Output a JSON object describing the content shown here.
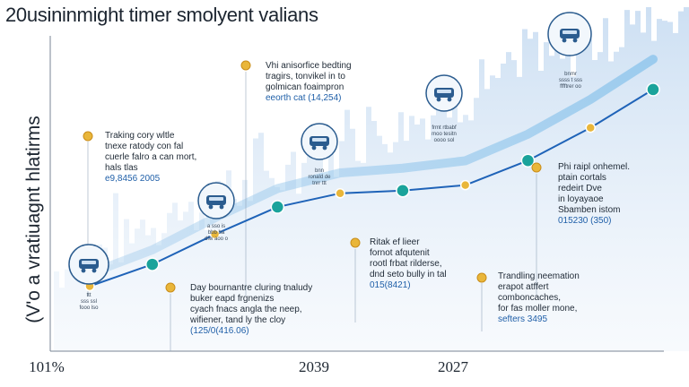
{
  "title": "20usininmight timer smolyent valians",
  "chart_data": {
    "type": "line",
    "title": "20usininmight timer smolyent valians",
    "ylabel": "(V'o a vratiuagnt hlatirms",
    "xlabel": "",
    "x_tick_labels": [
      "101%",
      "2039",
      "2027"
    ],
    "series": [
      {
        "values": [
          {
            "x": 0,
            "y": 10
          },
          {
            "x": 1,
            "y": 18
          },
          {
            "x": 2,
            "y": 29
          },
          {
            "x": 3,
            "y": 39
          },
          {
            "x": 4,
            "y": 44
          },
          {
            "x": 5,
            "y": 45
          },
          {
            "x": 6,
            "y": 47
          },
          {
            "x": 7,
            "y": 56
          },
          {
            "x": 8,
            "y": 68
          },
          {
            "x": 9,
            "y": 82
          }
        ]
      }
    ],
    "ylim": [
      0,
      100
    ],
    "grid": false,
    "legend": "none"
  },
  "annotations": [
    {
      "lines": [
        "Vhi anisorfice bedting",
        "tragirs, tonvikel in to",
        "golmican foaimpron"
      ],
      "highlight": "eeorth cat (14,254)"
    },
    {
      "lines": [
        "Traking cory wltle",
        "tnexe ratody con fal",
        "cuerle falro a can mort,",
        "hals tlas"
      ],
      "highlight": "e9,8456 2005"
    },
    {
      "lines": [
        "Day bournantre cluring tnaludy",
        "buker eapd frgnenizs",
        "cyach fnacs angla the neep,",
        "wifiener, tand ly the cloy"
      ],
      "highlight": "(125/0(416.06)"
    },
    {
      "lines": [
        "Ritak ef lieer",
        "fornot afqutenit",
        "rootl frbat rilderse,",
        "dnd seto bully in tal"
      ],
      "highlight": "015(8421)"
    },
    {
      "lines": [
        "Phi raipl onhemel.",
        "ptain cortals",
        "redeirt Dve",
        "in loyayaoe",
        "Sbamben istom"
      ],
      "highlight": "015230 (350)"
    },
    {
      "lines": [
        "Trandling neemation",
        "erapot atffert",
        "comboncaches,",
        "for fas moller mone,"
      ],
      "highlight": "sefters 3495"
    }
  ],
  "colors": {
    "line": "#1f63b8",
    "marker_teal": "#1aa39b",
    "marker_gold": "#e9b63a",
    "area_light": "#cfe1f3",
    "area_mid": "#a9c9e8",
    "title": "#1c2530",
    "highlight": "#1f5fa8"
  },
  "icons": [
    {
      "name": "truck-icon",
      "caption": [
        "ttt",
        "sss ssl",
        "fooo lso"
      ]
    },
    {
      "name": "van-icon",
      "caption": [
        "a sso is",
        "bbb ba",
        "dfw aoo o"
      ]
    },
    {
      "name": "people-icon",
      "caption": [
        "bnn",
        "ronald de",
        "tnrr ttt"
      ]
    },
    {
      "name": "car-icon",
      "caption": [
        "frmt rtbabf",
        "moo tesitn",
        "oooo sol"
      ]
    },
    {
      "name": "train-icon",
      "caption": [
        "bnmr",
        "ssss t sss",
        "fffftrer oo"
      ]
    }
  ]
}
